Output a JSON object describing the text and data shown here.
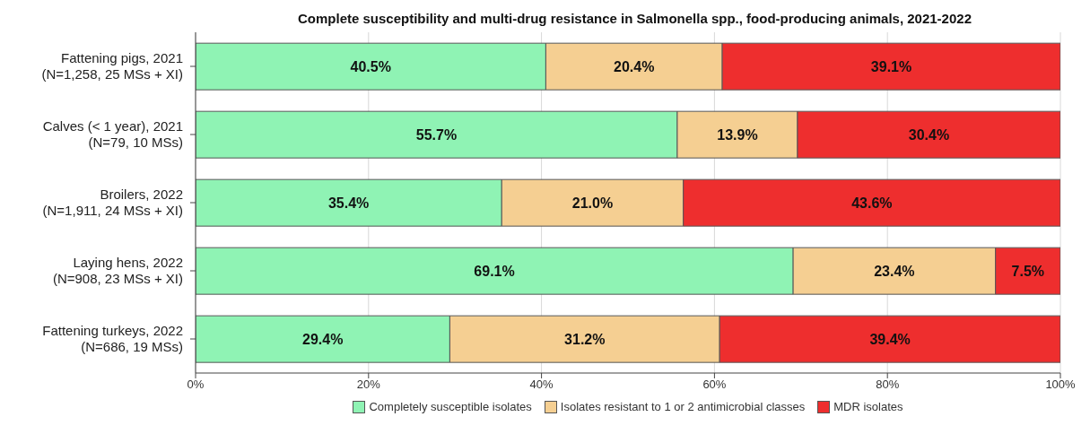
{
  "chart_data": {
    "type": "bar",
    "orientation": "horizontal",
    "stacked": true,
    "title": "Complete susceptibility and multi-drug resistance in Salmonella spp., food-producing animals, 2021-2022",
    "categories": [
      "Fattening pigs, 2021\n(N=1,258, 25 MSs + XI)",
      "Calves (< 1 year), 2021\n(N=79, 10 MSs)",
      "Broilers, 2022\n(N=1,911, 24 MSs + XI)",
      "Laying hens, 2022\n(N=908, 23 MSs + XI)",
      "Fattening turkeys, 2022\n(N=686, 19 MSs)"
    ],
    "series": [
      {
        "name": "Completely susceptible isolates",
        "color": "#8ff3b4",
        "values": [
          40.5,
          55.7,
          35.4,
          69.1,
          29.4
        ],
        "value_labels": [
          "40.5%",
          "55.7%",
          "35.4%",
          "69.1%",
          "29.4%"
        ]
      },
      {
        "name": "Isolates resistant to 1 or 2 antimicrobial classes",
        "color": "#f5cf92",
        "values": [
          20.4,
          13.9,
          21.0,
          23.4,
          31.2
        ],
        "value_labels": [
          "20.4%",
          "13.9%",
          "21.0%",
          "23.4%",
          "31.2%"
        ]
      },
      {
        "name": "MDR isolates",
        "color": "#ee2e2e",
        "values": [
          39.1,
          30.4,
          43.6,
          7.5,
          39.4
        ],
        "value_labels": [
          "39.1%",
          "30.4%",
          "43.6%",
          "7.5%",
          "39.4%"
        ]
      }
    ],
    "xlim": [
      0,
      100
    ],
    "xticks": [
      {
        "value": 0,
        "label": "0%"
      },
      {
        "value": 20,
        "label": "20%"
      },
      {
        "value": 40,
        "label": "40%"
      },
      {
        "value": 60,
        "label": "60%"
      },
      {
        "value": 80,
        "label": "80%"
      },
      {
        "value": 100,
        "label": "100%"
      }
    ],
    "grid": "x",
    "legend": "bottom"
  }
}
